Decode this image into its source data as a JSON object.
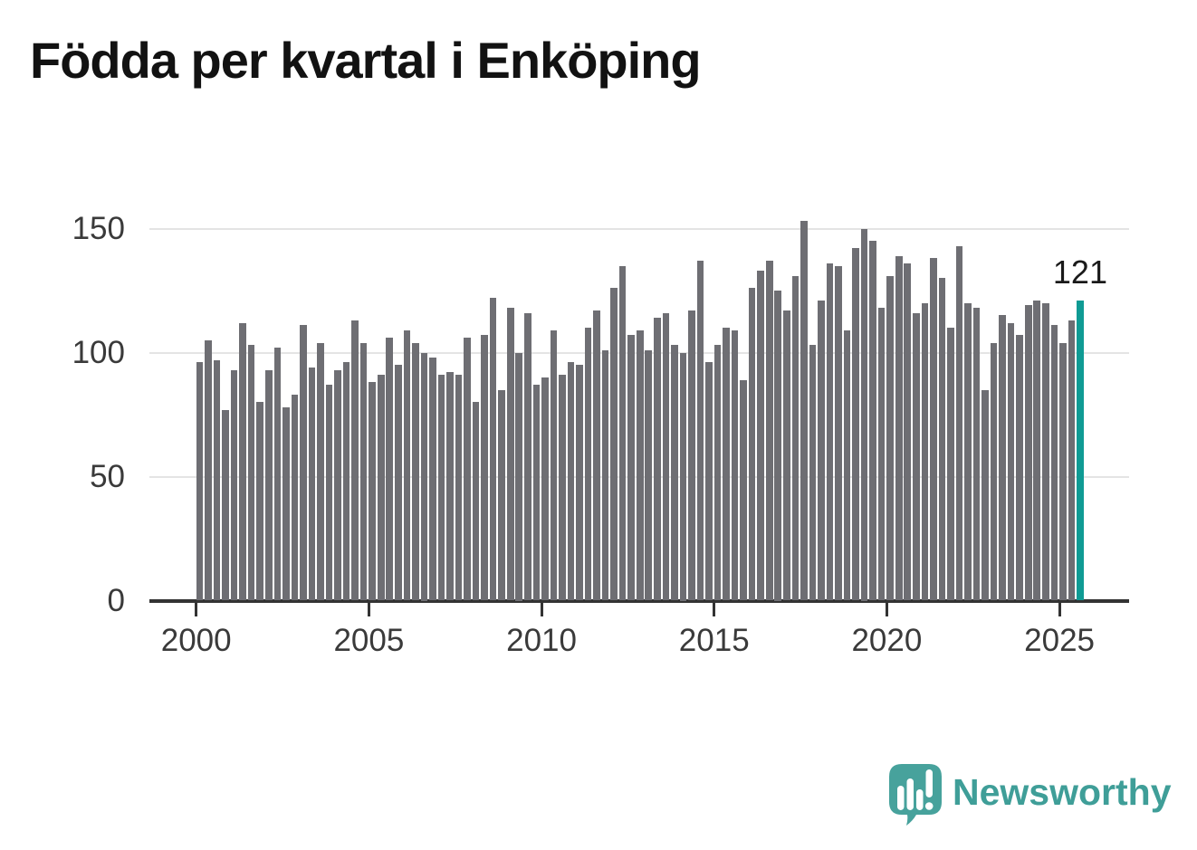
{
  "title": "Födda per kvartal i Enköping",
  "annotation": {
    "label": "121"
  },
  "branding": {
    "name": "Newsworthy"
  },
  "colors": {
    "bar": "#6e6e73",
    "highlight": "#0f9b94",
    "grid": "#e4e4e4",
    "axis": "#333333",
    "title_text": "#121212",
    "axis_text": "#3a3a3a",
    "annotation_text": "#1a1a1a",
    "logo_teal": "#47a29c",
    "wordmark_teal": "#3f9e98"
  },
  "chart_data": {
    "type": "bar",
    "title": "Födda per kvartal i Enköping",
    "x_unit": "quarter",
    "x_start": "2000Q1",
    "x_end": "2025Q3",
    "xticks": [
      2000,
      2005,
      2010,
      2015,
      2020,
      2025
    ],
    "yticks": [
      0,
      50,
      100,
      150
    ],
    "ylim": [
      0,
      160
    ],
    "grid": "horizontal",
    "legend": "none",
    "highlight_last_bar": true,
    "last_value_label": "121",
    "values": [
      96,
      105,
      97,
      77,
      93,
      112,
      103,
      80,
      93,
      102,
      78,
      83,
      111,
      94,
      104,
      87,
      93,
      96,
      113,
      104,
      88,
      91,
      106,
      95,
      109,
      104,
      100,
      98,
      91,
      92,
      91,
      106,
      80,
      107,
      122,
      85,
      118,
      100,
      116,
      87,
      90,
      109,
      91,
      96,
      95,
      110,
      117,
      101,
      126,
      135,
      107,
      109,
      101,
      114,
      116,
      103,
      100,
      117,
      137,
      96,
      103,
      110,
      109,
      89,
      126,
      133,
      137,
      125,
      117,
      131,
      153,
      103,
      121,
      136,
      135,
      109,
      142,
      150,
      145,
      118,
      131,
      139,
      136,
      116,
      120,
      138,
      130,
      110,
      143,
      120,
      118,
      85,
      104,
      115,
      112,
      107,
      119,
      121,
      120,
      111,
      104,
      113,
      121
    ]
  }
}
